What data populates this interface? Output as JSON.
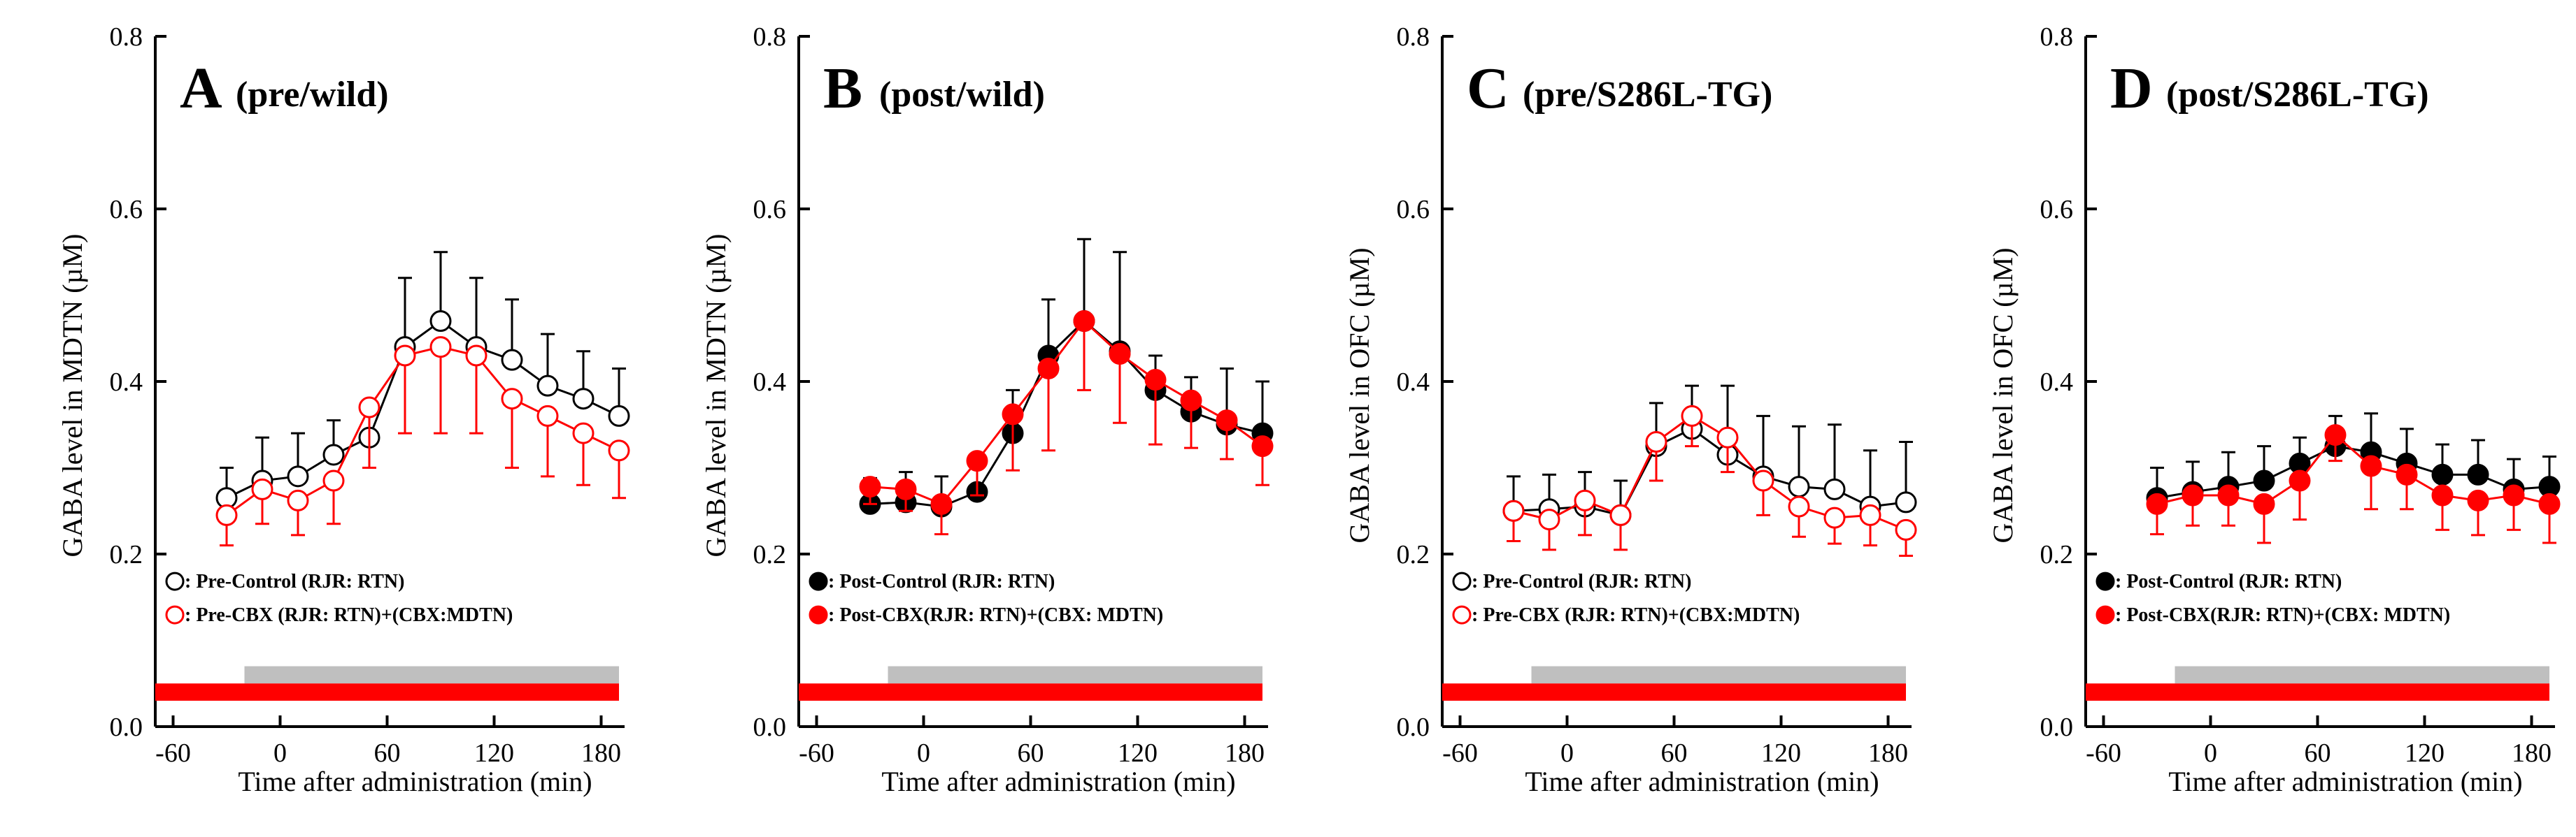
{
  "chart_data": [
    {
      "type": "line",
      "panel_letter": "A",
      "title": "(pre/wild)",
      "xlabel": "Time after administration (min)",
      "ylabel": "GABA level in MDTN (µM)",
      "ylim": [
        0.0,
        0.8
      ],
      "xlim": [
        -70,
        190
      ],
      "xticks": [
        "-60",
        "0",
        "60",
        "120",
        "180"
      ],
      "yticks": [
        "0.0",
        "0.2",
        "0.4",
        "0.6",
        "0.8"
      ],
      "x": [
        -30,
        -10,
        10,
        30,
        50,
        70,
        90,
        110,
        130,
        150,
        170,
        190
      ],
      "legend_position": "bottom-left",
      "series": [
        {
          "name": ": Pre-Control (RJR: RTN)",
          "style": "open-black",
          "values": [
            0.265,
            0.285,
            0.29,
            0.315,
            0.335,
            0.44,
            0.47,
            0.44,
            0.425,
            0.395,
            0.38,
            0.36
          ],
          "errors": [
            0.035,
            0.05,
            0.05,
            0.04,
            0.04,
            0.08,
            0.08,
            0.08,
            0.07,
            0.06,
            0.055,
            0.055
          ]
        },
        {
          "name": ": Pre-CBX (RJR: RTN)+(CBX:MDTN)",
          "style": "open-red",
          "values": [
            0.245,
            0.275,
            0.262,
            0.285,
            0.37,
            0.43,
            0.44,
            0.43,
            0.38,
            0.36,
            0.34,
            0.32
          ],
          "errors": [
            0.035,
            0.04,
            0.04,
            0.05,
            0.07,
            0.09,
            0.1,
            0.09,
            0.08,
            0.07,
            0.06,
            0.055
          ]
        }
      ],
      "gray_bar_range": [
        -20,
        190
      ],
      "red_bar_range": [
        -70,
        190
      ]
    },
    {
      "type": "line",
      "panel_letter": "B",
      "title": "(post/wild)",
      "xlabel": "Time after administration (min)",
      "ylabel": "GABA level in MDTN (µM)",
      "ylim": [
        0.0,
        0.8
      ],
      "xlim": [
        -70,
        190
      ],
      "xticks": [
        "-60",
        "0",
        "60",
        "120",
        "180"
      ],
      "yticks": [
        "0.0",
        "0.2",
        "0.4",
        "0.6",
        "0.8"
      ],
      "x": [
        -30,
        -10,
        10,
        30,
        50,
        70,
        90,
        110,
        130,
        150,
        170,
        190
      ],
      "legend_position": "bottom-left",
      "series": [
        {
          "name": ": Post-Control (RJR: RTN)",
          "style": "filled-black",
          "values": [
            0.258,
            0.26,
            0.255,
            0.272,
            0.34,
            0.43,
            0.47,
            0.435,
            0.39,
            0.365,
            0.35,
            0.34
          ],
          "errors": [
            0.03,
            0.035,
            0.035,
            0.03,
            0.05,
            0.065,
            0.095,
            0.115,
            0.04,
            0.04,
            0.065,
            0.06
          ]
        },
        {
          "name": ": Post-CBX(RJR: RTN)+(CBX: MDTN)",
          "style": "filled-red",
          "values": [
            0.278,
            0.275,
            0.258,
            0.308,
            0.362,
            0.415,
            0.47,
            0.432,
            0.402,
            0.378,
            0.355,
            0.325
          ],
          "errors": [
            0.02,
            0.025,
            0.035,
            0.04,
            0.065,
            0.095,
            0.08,
            0.08,
            0.075,
            0.055,
            0.045,
            0.045
          ]
        }
      ],
      "gray_bar_range": [
        -20,
        190
      ],
      "red_bar_range": [
        -70,
        190
      ]
    },
    {
      "type": "line",
      "panel_letter": "C",
      "title": "(pre/S286L-TG)",
      "xlabel": "Time after administration (min)",
      "ylabel": "GABA level in OFC (µM)",
      "ylim": [
        0.0,
        0.8
      ],
      "xlim": [
        -70,
        190
      ],
      "xticks": [
        "-60",
        "0",
        "60",
        "120",
        "180"
      ],
      "yticks": [
        "0.0",
        "0.2",
        "0.4",
        "0.6",
        "0.8"
      ],
      "x": [
        -30,
        -10,
        10,
        30,
        50,
        70,
        90,
        110,
        130,
        150,
        170,
        190
      ],
      "legend_position": "bottom-left",
      "series": [
        {
          "name": ": Pre-Control (RJR: RTN)",
          "style": "open-black",
          "values": [
            0.25,
            0.252,
            0.255,
            0.245,
            0.325,
            0.345,
            0.315,
            0.29,
            0.278,
            0.275,
            0.255,
            0.26
          ],
          "errors": [
            0.04,
            0.04,
            0.04,
            0.04,
            0.05,
            0.05,
            0.08,
            0.07,
            0.07,
            0.075,
            0.065,
            0.07
          ]
        },
        {
          "name": ": Pre-CBX (RJR: RTN)+(CBX:MDTN)",
          "style": "open-red",
          "values": [
            0.25,
            0.24,
            0.262,
            0.245,
            0.33,
            0.36,
            0.335,
            0.285,
            0.255,
            0.242,
            0.245,
            0.228
          ],
          "errors": [
            0.035,
            0.035,
            0.04,
            0.04,
            0.045,
            0.035,
            0.04,
            0.04,
            0.035,
            0.03,
            0.035,
            0.03
          ]
        }
      ],
      "gray_bar_range": [
        -20,
        190
      ],
      "red_bar_range": [
        -70,
        190
      ]
    },
    {
      "type": "line",
      "panel_letter": "D",
      "title": "(post/S286L-TG)",
      "xlabel": "Time after administration (min)",
      "ylabel": "GABA level in OFC (µM)",
      "ylim": [
        0.0,
        0.8
      ],
      "xlim": [
        -70,
        190
      ],
      "xticks": [
        "-60",
        "0",
        "60",
        "120",
        "180"
      ],
      "yticks": [
        "0.0",
        "0.2",
        "0.4",
        "0.6",
        "0.8"
      ],
      "x": [
        -30,
        -10,
        10,
        30,
        50,
        70,
        90,
        110,
        130,
        150,
        170,
        190
      ],
      "legend_position": "bottom-left",
      "series": [
        {
          "name": ": Post-Control (RJR: RTN)",
          "style": "filled-black",
          "values": [
            0.265,
            0.272,
            0.278,
            0.285,
            0.305,
            0.325,
            0.318,
            0.305,
            0.292,
            0.292,
            0.275,
            0.278
          ],
          "errors": [
            0.035,
            0.035,
            0.04,
            0.04,
            0.03,
            0.035,
            0.045,
            0.04,
            0.035,
            0.04,
            0.035,
            0.035
          ]
        },
        {
          "name": ": Post-CBX(RJR: RTN)+(CBX: MDTN)",
          "style": "filled-red",
          "values": [
            0.258,
            0.268,
            0.268,
            0.258,
            0.285,
            0.338,
            0.302,
            0.292,
            0.268,
            0.262,
            0.268,
            0.258
          ],
          "errors": [
            0.035,
            0.035,
            0.035,
            0.045,
            0.045,
            0.03,
            0.05,
            0.04,
            0.04,
            0.04,
            0.04,
            0.045
          ]
        }
      ],
      "gray_bar_range": [
        -20,
        190
      ],
      "red_bar_range": [
        -70,
        190
      ]
    }
  ],
  "colors": {
    "red": "#ff0000",
    "black": "#000000",
    "gray_bar": "#bfbfbf"
  }
}
